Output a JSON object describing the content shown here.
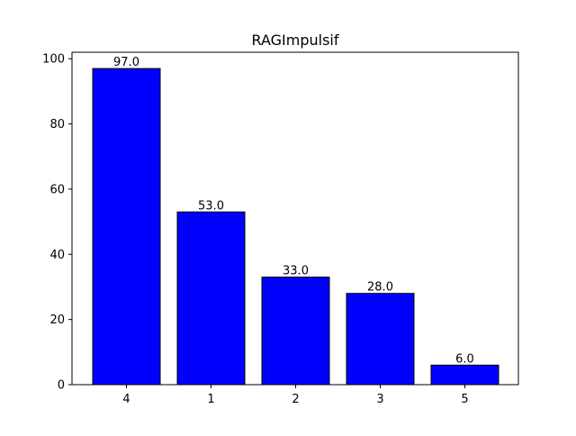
{
  "chart_data": {
    "type": "bar",
    "title": "RAGImpulsif",
    "xlabel": "",
    "ylabel": "",
    "categories": [
      "4",
      "1",
      "2",
      "3",
      "5"
    ],
    "values": [
      97.0,
      53.0,
      33.0,
      28.0,
      6.0
    ],
    "value_labels": [
      "97.0",
      "53.0",
      "33.0",
      "28.0",
      "6.0"
    ],
    "ylim": [
      0,
      102
    ],
    "yticks": [
      0,
      20,
      40,
      60,
      80,
      100
    ],
    "grid": false,
    "legend": "none",
    "colors": {
      "bar_fill": "#0000ff",
      "bar_edge": "#000000",
      "axes": "#000000",
      "background": "#ffffff"
    }
  }
}
